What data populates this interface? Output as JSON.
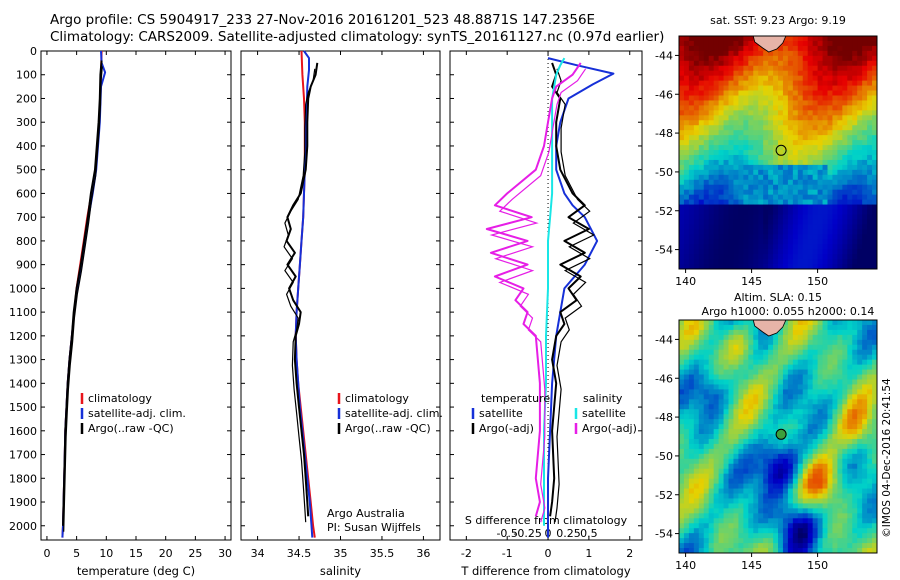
{
  "header": {
    "line1": "Argo profile: CS 5904917_233 27-Nov-2016 20161201_523 48.8871S 147.2356E",
    "line2": "Climatology: CARS2009. Satellite-adjusted climatology: synTS_20161127.nc (0.97d earlier)"
  },
  "colors": {
    "climatology": "#e8141b",
    "satellite": "#1630d8",
    "argo": "#000000",
    "satellite_salinity": "#19e6e6",
    "argo_salinity_diff": "#e61ee6"
  },
  "legend_entries": [
    "climatology",
    "satellite-adj. clim.",
    "Argo(..raw -QC)"
  ],
  "credits": {
    "line1": "Argo Australia",
    "line2": "PI: Susan Wijffels"
  },
  "stamp": "©IMOS 04-Dec-2016 20:41:54",
  "chart_data": [
    {
      "id": "temperature",
      "type": "line",
      "xlabel": "temperature (deg C)",
      "ylabel": "",
      "xlim": [
        -1,
        31
      ],
      "ylim": [
        2060,
        0
      ],
      "xticks": [
        0,
        5,
        10,
        15,
        20,
        25,
        30
      ],
      "yticks": [
        0,
        100,
        200,
        300,
        400,
        500,
        600,
        700,
        800,
        900,
        1000,
        1100,
        1200,
        1300,
        1400,
        1500,
        1600,
        1700,
        1800,
        1900,
        2000
      ],
      "legend": "lower-middle",
      "series": [
        {
          "name": "climatology",
          "x": [
            9.2,
            9.1,
            9.0,
            8.8,
            8.5,
            8.2,
            7.5,
            6.8,
            6.2,
            5.6,
            5.0,
            4.6,
            4.2,
            3.8,
            3.5,
            3.3,
            3.1,
            3.0,
            2.9,
            2.8,
            2.7,
            2.6
          ],
          "y": [
            0,
            100,
            200,
            300,
            400,
            500,
            600,
            700,
            800,
            900,
            1000,
            1100,
            1200,
            1300,
            1400,
            1500,
            1600,
            1700,
            1800,
            1900,
            2000,
            2050
          ]
        },
        {
          "name": "satellite-adj. clim.",
          "x": [
            9.1,
            9.2,
            9.8,
            9.1,
            8.9,
            8.6,
            8.3,
            7.7,
            7.0,
            6.4,
            5.8,
            5.1,
            4.6,
            4.2,
            3.8,
            3.5,
            3.3,
            3.1,
            3.0,
            2.9,
            2.8,
            2.7,
            2.6
          ],
          "y": [
            0,
            50,
            90,
            150,
            300,
            400,
            500,
            600,
            700,
            800,
            900,
            1000,
            1100,
            1200,
            1300,
            1400,
            1500,
            1600,
            1700,
            1800,
            1900,
            2000,
            2050
          ]
        },
        {
          "name": "Argo(..raw -QC)",
          "x": [
            9.2,
            9.0,
            8.9,
            8.7,
            8.4,
            8.1,
            7.4,
            6.9,
            6.3,
            5.7,
            5.0,
            4.5,
            4.2,
            3.8,
            3.5,
            3.3,
            3.1,
            3.0,
            2.9,
            2.8,
            2.7
          ],
          "y": [
            40,
            100,
            200,
            300,
            400,
            500,
            600,
            700,
            800,
            900,
            1000,
            1100,
            1200,
            1300,
            1400,
            1500,
            1600,
            1700,
            1800,
            1900,
            2000
          ]
        }
      ]
    },
    {
      "id": "salinity",
      "type": "line",
      "xlabel": "salinity",
      "ylabel": "",
      "xlim": [
        33.8,
        36.2
      ],
      "ylim": [
        2060,
        0
      ],
      "xticks": [
        34,
        34.5,
        35,
        35.5,
        36
      ],
      "legend": "lower-right",
      "series": [
        {
          "name": "climatology",
          "x": [
            34.53,
            34.54,
            34.56,
            34.57,
            34.57,
            34.57,
            34.56,
            34.55,
            34.53,
            34.51,
            34.49,
            34.47,
            34.46,
            34.47,
            34.49,
            34.52,
            34.55,
            34.58,
            34.61,
            34.64,
            34.67,
            34.69
          ],
          "y": [
            0,
            100,
            200,
            300,
            400,
            500,
            600,
            700,
            800,
            900,
            1000,
            1100,
            1200,
            1300,
            1400,
            1500,
            1600,
            1700,
            1800,
            1900,
            2000,
            2050
          ]
        },
        {
          "name": "satellite-adj. clim.",
          "x": [
            34.56,
            34.62,
            34.62,
            34.6,
            34.59,
            34.58,
            34.57,
            34.56,
            34.55,
            34.53,
            34.51,
            34.49,
            34.47,
            34.46,
            34.47,
            34.49,
            34.51,
            34.54,
            34.57,
            34.6,
            34.63,
            34.65,
            34.66
          ],
          "y": [
            0,
            30,
            80,
            150,
            300,
            400,
            500,
            600,
            700,
            800,
            900,
            1000,
            1100,
            1200,
            1300,
            1400,
            1500,
            1600,
            1700,
            1800,
            1900,
            2000,
            2050
          ]
        },
        {
          "name": "Argo(..raw -QC)",
          "x": [
            34.72,
            34.7,
            34.64,
            34.61,
            34.6,
            34.6,
            34.58,
            34.52,
            34.43,
            34.36,
            34.4,
            34.35,
            34.45,
            34.36,
            34.46,
            34.38,
            34.43,
            34.52,
            34.5,
            34.46,
            34.45,
            34.47,
            34.5,
            34.53,
            34.56,
            34.58,
            34.6,
            34.61
          ],
          "y": [
            50,
            100,
            150,
            200,
            300,
            400,
            500,
            600,
            650,
            700,
            750,
            800,
            850,
            900,
            950,
            1000,
            1050,
            1100,
            1150,
            1200,
            1300,
            1400,
            1500,
            1600,
            1700,
            1800,
            1900,
            1960
          ]
        }
      ]
    },
    {
      "id": "differences",
      "type": "line",
      "xlabel": "T difference from climatology",
      "x2label": "S difference from climatology",
      "ylabel": "",
      "xlim": [
        -2.4,
        2.3
      ],
      "ylim": [
        2060,
        0
      ],
      "xticks": [
        -2,
        -1,
        0,
        1,
        2
      ],
      "x2ticks": [
        "-0.5",
        "-0.25",
        "0",
        "0.25",
        "0.5"
      ],
      "legend": "lower-middle",
      "legend_headers": [
        "temperature",
        "salinity"
      ],
      "series": [
        {
          "name": "satellite",
          "group": "temperature",
          "x": [
            0.0,
            0.7,
            1.6,
            1.1,
            0.5,
            0.3,
            0.2,
            0.2,
            0.3,
            0.4,
            0.6,
            0.9,
            1.2,
            0.9,
            0.4,
            0.3,
            0.2,
            0.1,
            0.05,
            0.0,
            0.0,
            0.0
          ],
          "y": [
            30,
            60,
            95,
            140,
            200,
            300,
            400,
            500,
            550,
            600,
            650,
            700,
            800,
            900,
            1000,
            1100,
            1200,
            1400,
            1600,
            1800,
            2000,
            2050
          ]
        },
        {
          "name": "Argo(-adj)",
          "group": "temperature",
          "x": [
            0.1,
            0.2,
            0.1,
            0.3,
            0.2,
            0.2,
            0.3,
            0.6,
            0.9,
            0.5,
            1.0,
            0.4,
            0.9,
            0.3,
            0.8,
            0.5,
            0.7,
            0.3,
            0.4,
            0.2,
            0.1,
            0.2,
            0.1,
            0.15,
            0.1,
            0.05
          ],
          "y": [
            50,
            100,
            150,
            200,
            300,
            400,
            500,
            600,
            650,
            700,
            750,
            800,
            850,
            900,
            950,
            1000,
            1050,
            1100,
            1150,
            1200,
            1300,
            1400,
            1600,
            1800,
            1900,
            1960
          ]
        },
        {
          "name": "satellite",
          "group": "salinity",
          "x": [
            0.4,
            0.3,
            0.2,
            0.15,
            0.1,
            0.1,
            0.1,
            0.05,
            0.0,
            0.0,
            -0.05,
            -0.05,
            -0.1,
            -0.1,
            -0.1
          ],
          "y": [
            30,
            60,
            100,
            150,
            200,
            400,
            600,
            700,
            800,
            1000,
            1200,
            1400,
            1600,
            1800,
            2000
          ]
        },
        {
          "name": "Argo(-adj)",
          "group": "salinity",
          "x": [
            0.8,
            0.6,
            0.2,
            0.1,
            0.0,
            -0.1,
            -0.3,
            -1.0,
            -1.3,
            -0.4,
            -1.5,
            -0.5,
            -1.4,
            -0.5,
            -1.3,
            -0.6,
            -0.8,
            -0.5,
            -0.6,
            -0.3,
            -0.2,
            -0.2,
            -0.3,
            -0.2,
            -0.3
          ],
          "y": [
            50,
            100,
            150,
            200,
            300,
            400,
            500,
            600,
            650,
            700,
            750,
            800,
            850,
            900,
            950,
            1000,
            1050,
            1100,
            1150,
            1200,
            1400,
            1600,
            1800,
            1900,
            1960
          ]
        }
      ]
    },
    {
      "id": "sst_map",
      "type": "heatmap",
      "title": "sat. SST: 9.23 Argo: 9.19",
      "xticks": [
        140,
        145,
        150
      ],
      "yticks": [
        -44,
        -46,
        -48,
        -50,
        -52,
        -54
      ],
      "xlim": [
        139.5,
        154.5
      ],
      "ylim": [
        -55,
        -43
      ]
    },
    {
      "id": "ssh_map",
      "type": "heatmap",
      "title": "Altim. SLA: 0.15",
      "subtitle": "Argo h1000: 0.055 h2000: 0.14",
      "xticks": [
        140,
        145,
        150
      ],
      "yticks": [
        -44,
        -46,
        -48,
        -50,
        -52,
        -54
      ],
      "xlim": [
        139.5,
        154.5
      ],
      "ylim": [
        -55,
        -43
      ]
    }
  ]
}
